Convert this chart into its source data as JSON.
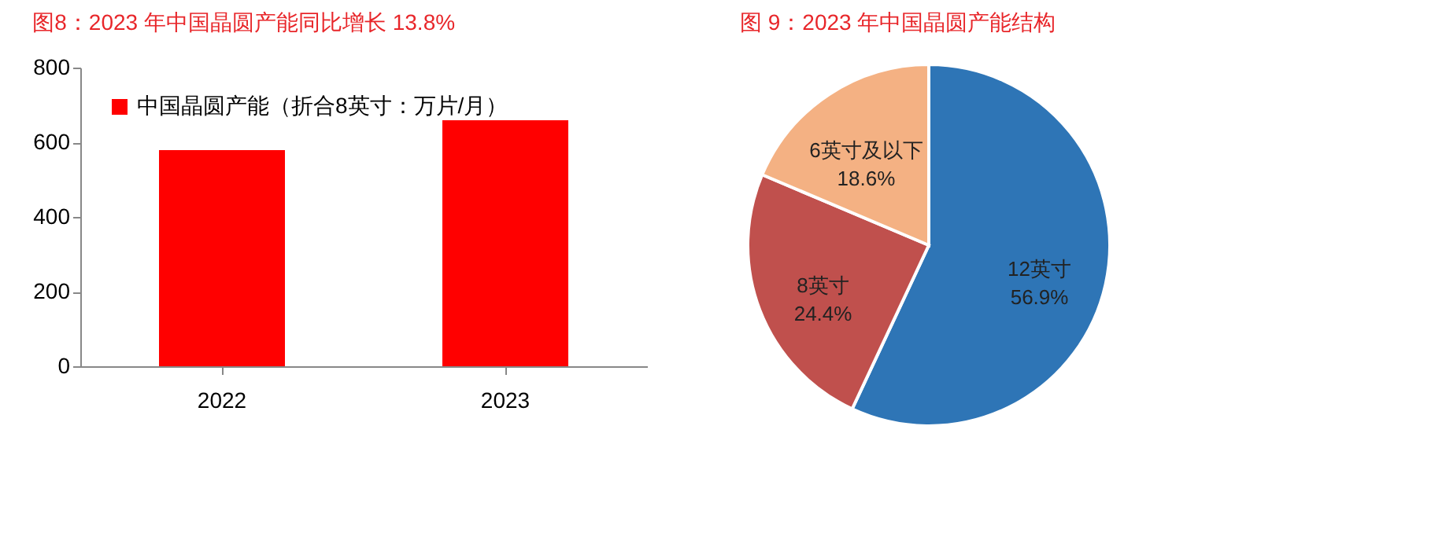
{
  "chart_data": [
    {
      "type": "bar",
      "title": "图8：2023 年中国晶圆产能同比增长 13.8%",
      "categories": [
        "2022",
        "2023"
      ],
      "series": [
        {
          "name": "中国晶圆产能（折合8英寸：万片/月）",
          "color": "#ff0000",
          "values": [
            579,
            659
          ]
        }
      ],
      "ylim": [
        0,
        800
      ],
      "yticks": [
        0,
        200,
        400,
        600,
        800
      ],
      "grid": false,
      "legend": "top left"
    },
    {
      "type": "pie",
      "title": "图 9：2023 年中国晶圆产能结构",
      "categories": [
        "12英寸",
        "8英寸",
        "6英寸及以下"
      ],
      "values": [
        56.9,
        24.4,
        18.6
      ],
      "colors": [
        "#2e75b6",
        "#c0504d",
        "#f4b183"
      ],
      "value_labels": [
        "56.9%",
        "24.4%",
        "18.6%"
      ],
      "legend": false
    }
  ]
}
